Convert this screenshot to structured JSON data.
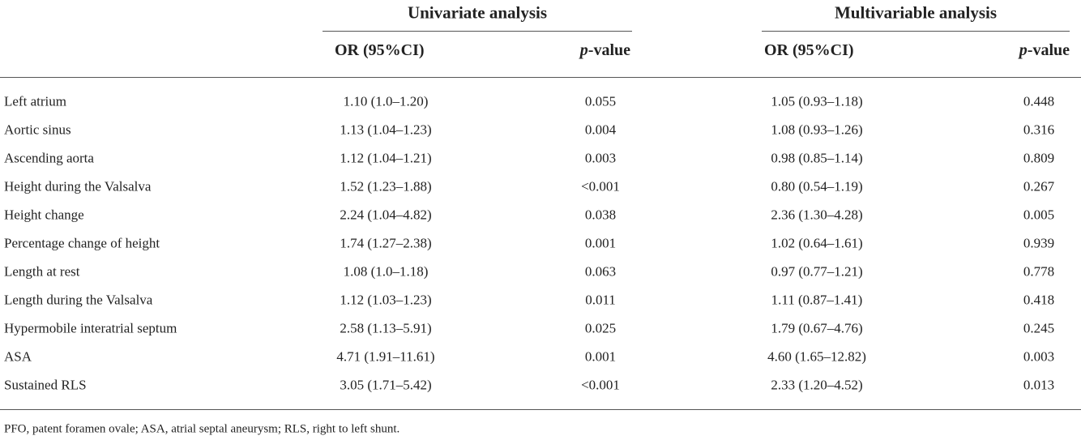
{
  "table": {
    "group_headers": [
      "Univariate analysis",
      "Multivariable analysis"
    ],
    "column_headers": [
      [
        {
          "text": "OR (95%CI)"
        }
      ],
      [
        {
          "text": "p",
          "italic": true
        },
        {
          "text": "-value"
        }
      ],
      [
        {
          "text": "OR (95%CI)"
        }
      ],
      [
        {
          "text": "p",
          "italic": true
        },
        {
          "text": "-value"
        }
      ]
    ],
    "rows": [
      [
        "Left atrium",
        "1.10 (1.0–1.20)",
        "0.055",
        "1.05 (0.93–1.18)",
        "0.448"
      ],
      [
        "Aortic sinus",
        "1.13 (1.04–1.23)",
        "0.004",
        "1.08 (0.93–1.26)",
        "0.316"
      ],
      [
        "Ascending aorta",
        "1.12 (1.04–1.21)",
        "0.003",
        "0.98 (0.85–1.14)",
        "0.809"
      ],
      [
        "Height during the Valsalva",
        "1.52 (1.23–1.88)",
        "<0.001",
        "0.80 (0.54–1.19)",
        "0.267"
      ],
      [
        "Height change",
        "2.24 (1.04–4.82)",
        "0.038",
        "2.36 (1.30–4.28)",
        "0.005"
      ],
      [
        "Percentage change of height",
        "1.74 (1.27–2.38)",
        "0.001",
        "1.02 (0.64–1.61)",
        "0.939"
      ],
      [
        "Length at rest",
        "1.08 (1.0–1.18)",
        "0.063",
        "0.97 (0.77–1.21)",
        "0.778"
      ],
      [
        "Length during the Valsalva",
        "1.12 (1.03–1.23)",
        "0.011",
        "1.11 (0.87–1.41)",
        "0.418"
      ],
      [
        "Hypermobile interatrial septum",
        "2.58 (1.13–5.91)",
        "0.025",
        "1.79 (0.67–4.76)",
        "0.245"
      ],
      [
        "ASA",
        "4.71 (1.91–11.61)",
        "0.001",
        "4.60 (1.65–12.82)",
        "0.003"
      ],
      [
        "Sustained RLS",
        "3.05 (1.71–5.42)",
        "<0.001",
        "2.33 (1.20–4.52)",
        "0.013"
      ]
    ],
    "footnote": "PFO, patent foramen ovale; ASA, atrial septal aneurysm; RLS, right to left shunt."
  }
}
